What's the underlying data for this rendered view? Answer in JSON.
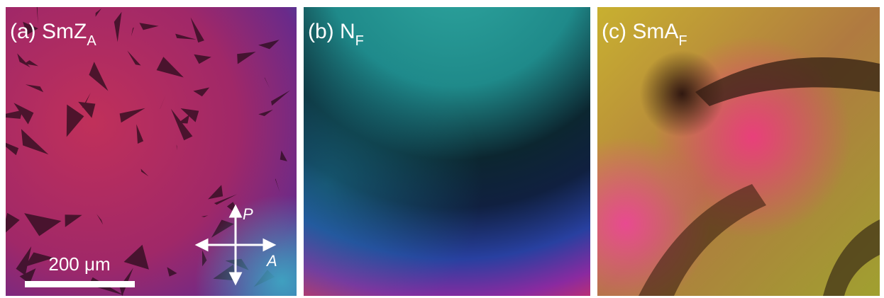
{
  "panels": [
    {
      "label": "(a) SmZ",
      "subscript": "A"
    },
    {
      "label": "(b) N",
      "subscript": "F"
    },
    {
      "label": "(c) SmA",
      "subscript": "F"
    }
  ],
  "scale_bar": "200 μm",
  "polarizer": "P",
  "analyzer": "A"
}
